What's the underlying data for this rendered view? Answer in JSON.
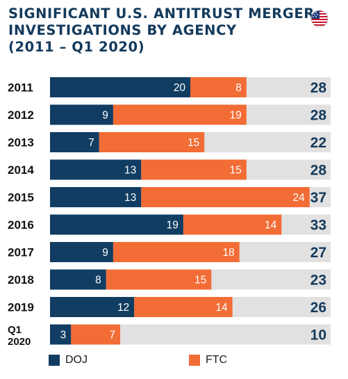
{
  "title": {
    "lines": [
      "SIGNIFICANT U.S. ANTITRUST MERGER",
      "INVESTIGATIONS BY AGENCY",
      "(2011 – Q1 2020)"
    ]
  },
  "flag_icon": "us-flag-icon",
  "colors": {
    "doj": "#123d62",
    "ftc": "#f26c35",
    "track": "#e1e1e1",
    "total_text": "#143a5c"
  },
  "chart_data": {
    "type": "bar",
    "orientation": "horizontal",
    "stacked": true,
    "categories": [
      "2011",
      "2012",
      "2013",
      "2014",
      "2015",
      "2016",
      "2017",
      "2018",
      "2019",
      "Q1\n2020"
    ],
    "series": [
      {
        "name": "DOJ",
        "values": [
          20,
          9,
          7,
          13,
          13,
          19,
          9,
          8,
          12,
          3
        ]
      },
      {
        "name": "FTC",
        "values": [
          8,
          19,
          15,
          15,
          24,
          14,
          18,
          15,
          14,
          7
        ]
      }
    ],
    "totals": [
      28,
      28,
      22,
      28,
      37,
      33,
      27,
      23,
      26,
      10
    ],
    "xlim": [
      0,
      40
    ],
    "legend_position": "bottom"
  }
}
